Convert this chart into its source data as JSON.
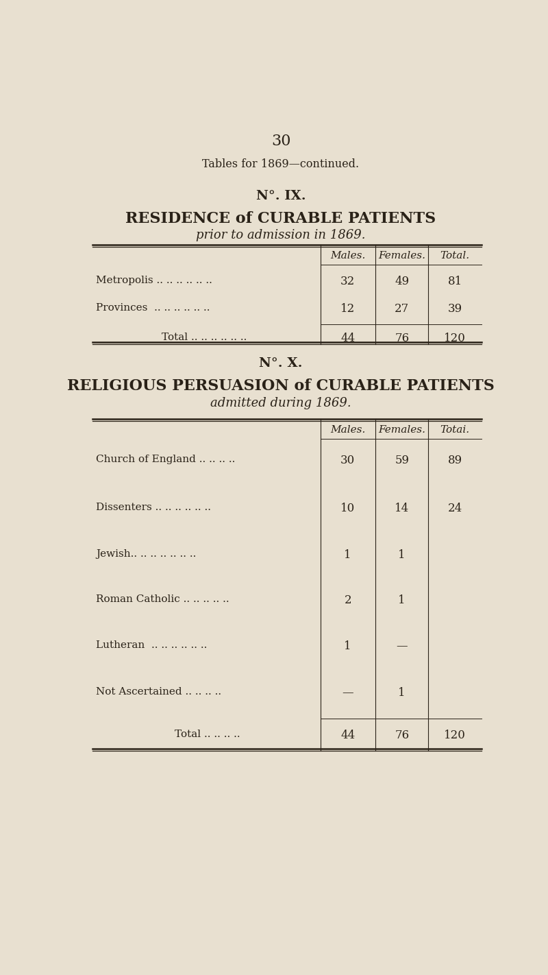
{
  "bg_color": "#e8e0d0",
  "text_color": "#2a2218",
  "page_number": "30",
  "header": "Tables for 1869—continued.",
  "table1": {
    "no_label": "N°. IX.",
    "title_line1": "RESIDENCE of CURABLE PATIENTS",
    "title_line2": "prior to admission in 1869.",
    "col_headers": [
      "Males.",
      "Females.",
      "Total."
    ],
    "rows": [
      [
        "Metropolis .. .. .. .. .. ..",
        "32",
        "49",
        "81"
      ],
      [
        "Provinces  .. .. .. .. .. ..",
        "12",
        "27",
        "39"
      ],
      [
        "Total .. .. .. .. .. ..",
        "44",
        "76",
        "120"
      ]
    ]
  },
  "table2": {
    "no_label": "N°. X.",
    "title_line1": "RELIGIOUS PERSUASION of CURABLE PATIENTS",
    "title_line2": "admitted during 1869.",
    "col_headers": [
      "Males.",
      "Females.",
      "Totai."
    ],
    "rows": [
      [
        "Church of England .. .. .. ..",
        "30",
        "59",
        "89"
      ],
      [
        "Dissenters .. .. .. .. .. ..",
        "10",
        "14",
        "24"
      ],
      [
        "Jewish.. .. .. .. .. .. ..",
        "1",
        "1",
        ""
      ],
      [
        "Roman Catholic .. .. .. .. ..",
        "2",
        "1",
        ""
      ],
      [
        "Lutheran  .. .. .. .. .. ..",
        "1",
        "—",
        ""
      ],
      [
        "Not Ascertained .. .. .. ..",
        "—",
        "1",
        ""
      ],
      [
        "Total .. .. .. ..",
        "44",
        "76",
        "120"
      ]
    ]
  }
}
